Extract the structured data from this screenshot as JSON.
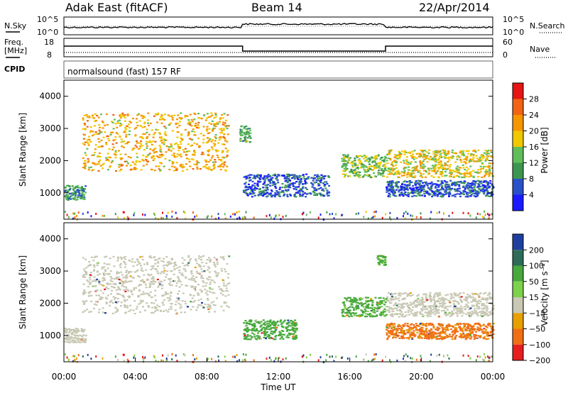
{
  "header": {
    "radar": "Adak East (fitACF)",
    "beam": "Beam 14",
    "date": "22/Apr/2014"
  },
  "noise_panel": {
    "left_label": "N.Sky",
    "right_label": "N.Search",
    "left_ticks": [
      "10^5",
      "10^0"
    ],
    "right_ticks": [
      "10^5",
      "10^0"
    ]
  },
  "freq_panel": {
    "left_label_1": "Freq.",
    "left_label_2": "[MHz]",
    "cpid_label": "CPID",
    "right_label": "Nave",
    "left_ticks": [
      "18",
      "8"
    ],
    "right_ticks": [
      "60",
      "0"
    ],
    "freq_steps": [
      {
        "start_h": 0.0,
        "end_h": 10.0,
        "level": "high"
      },
      {
        "start_h": 10.0,
        "end_h": 18.0,
        "level": "low"
      },
      {
        "start_h": 18.0,
        "end_h": 24.0,
        "level": "high"
      }
    ]
  },
  "cpid_text": "normalsound (fast) 157 RF",
  "chart_data": [
    {
      "type": "heatmap",
      "name": "power",
      "ylabel": "Slant Range [km]",
      "xlabel": "",
      "ylim": [
        180,
        4500
      ],
      "yticks": [
        "1000",
        "2000",
        "3000",
        "4000"
      ],
      "colorbar": {
        "label": "Power [dB]",
        "ticks": [
          "4",
          "8",
          "12",
          "16",
          "20",
          "24",
          "28"
        ],
        "colors": [
          "#1a1aff",
          "#2850c8",
          "#3c9650",
          "#5fbe5a",
          "#f0c800",
          "#f59600",
          "#f06414",
          "#e61414"
        ]
      },
      "features": [
        {
          "x_h": [
            0.0,
            1.2
          ],
          "range_km": [
            800,
            1250
          ],
          "db": 10
        },
        {
          "x_h": [
            1.0,
            9.2
          ],
          "range_km": [
            1700,
            3500
          ],
          "db": 20,
          "note_peak_db": 28
        },
        {
          "x_h": [
            9.8,
            10.4
          ],
          "range_km": [
            2600,
            3100
          ],
          "db": 12
        },
        {
          "x_h": [
            10.0,
            14.8
          ],
          "range_km": [
            900,
            1600
          ],
          "db": 6
        },
        {
          "x_h": [
            15.5,
            18.0
          ],
          "range_km": [
            1500,
            2200
          ],
          "db": 14
        },
        {
          "x_h": [
            18.0,
            24.0
          ],
          "range_km": [
            1500,
            2350
          ],
          "db": 18
        },
        {
          "x_h": [
            18.0,
            24.0
          ],
          "range_km": [
            900,
            1400
          ],
          "db": 6
        }
      ]
    },
    {
      "type": "heatmap",
      "name": "velocity",
      "ylabel": "Slant Range [km]",
      "xlabel": "Time UT",
      "ylim": [
        180,
        4500
      ],
      "yticks": [
        "1000",
        "2000",
        "3000",
        "4000"
      ],
      "xticks": [
        "00:00",
        "04:00",
        "08:00",
        "12:00",
        "16:00",
        "20:00",
        "00:00"
      ],
      "colorbar": {
        "label": "Velocity [m s⁻¹]",
        "ticks": [
          "200",
          "100",
          "50",
          "15",
          "−15",
          "−50",
          "−100",
          "−200"
        ],
        "colors": [
          "#1f3fa0",
          "#2e6b58",
          "#47a83c",
          "#7cd24a",
          "#c8c8b4",
          "#e6a000",
          "#f06e14",
          "#e61e1e"
        ]
      },
      "features": [
        {
          "x_h": [
            0.0,
            1.2
          ],
          "range_km": [
            800,
            1250
          ],
          "vel": 0
        },
        {
          "x_h": [
            1.0,
            9.2
          ],
          "range_km": [
            1700,
            3500
          ],
          "vel": 0
        },
        {
          "x_h": [
            10.0,
            13.0
          ],
          "range_km": [
            900,
            1500
          ],
          "vel": 60
        },
        {
          "x_h": [
            15.5,
            18.0
          ],
          "range_km": [
            1600,
            2200
          ],
          "vel": 40
        },
        {
          "x_h": [
            17.5,
            18.0
          ],
          "range_km": [
            3200,
            3500
          ],
          "vel": 40
        },
        {
          "x_h": [
            18.0,
            24.0
          ],
          "range_km": [
            1600,
            2350
          ],
          "vel": 0
        },
        {
          "x_h": [
            18.0,
            24.0
          ],
          "range_km": [
            900,
            1400
          ],
          "vel": -40
        }
      ]
    }
  ]
}
